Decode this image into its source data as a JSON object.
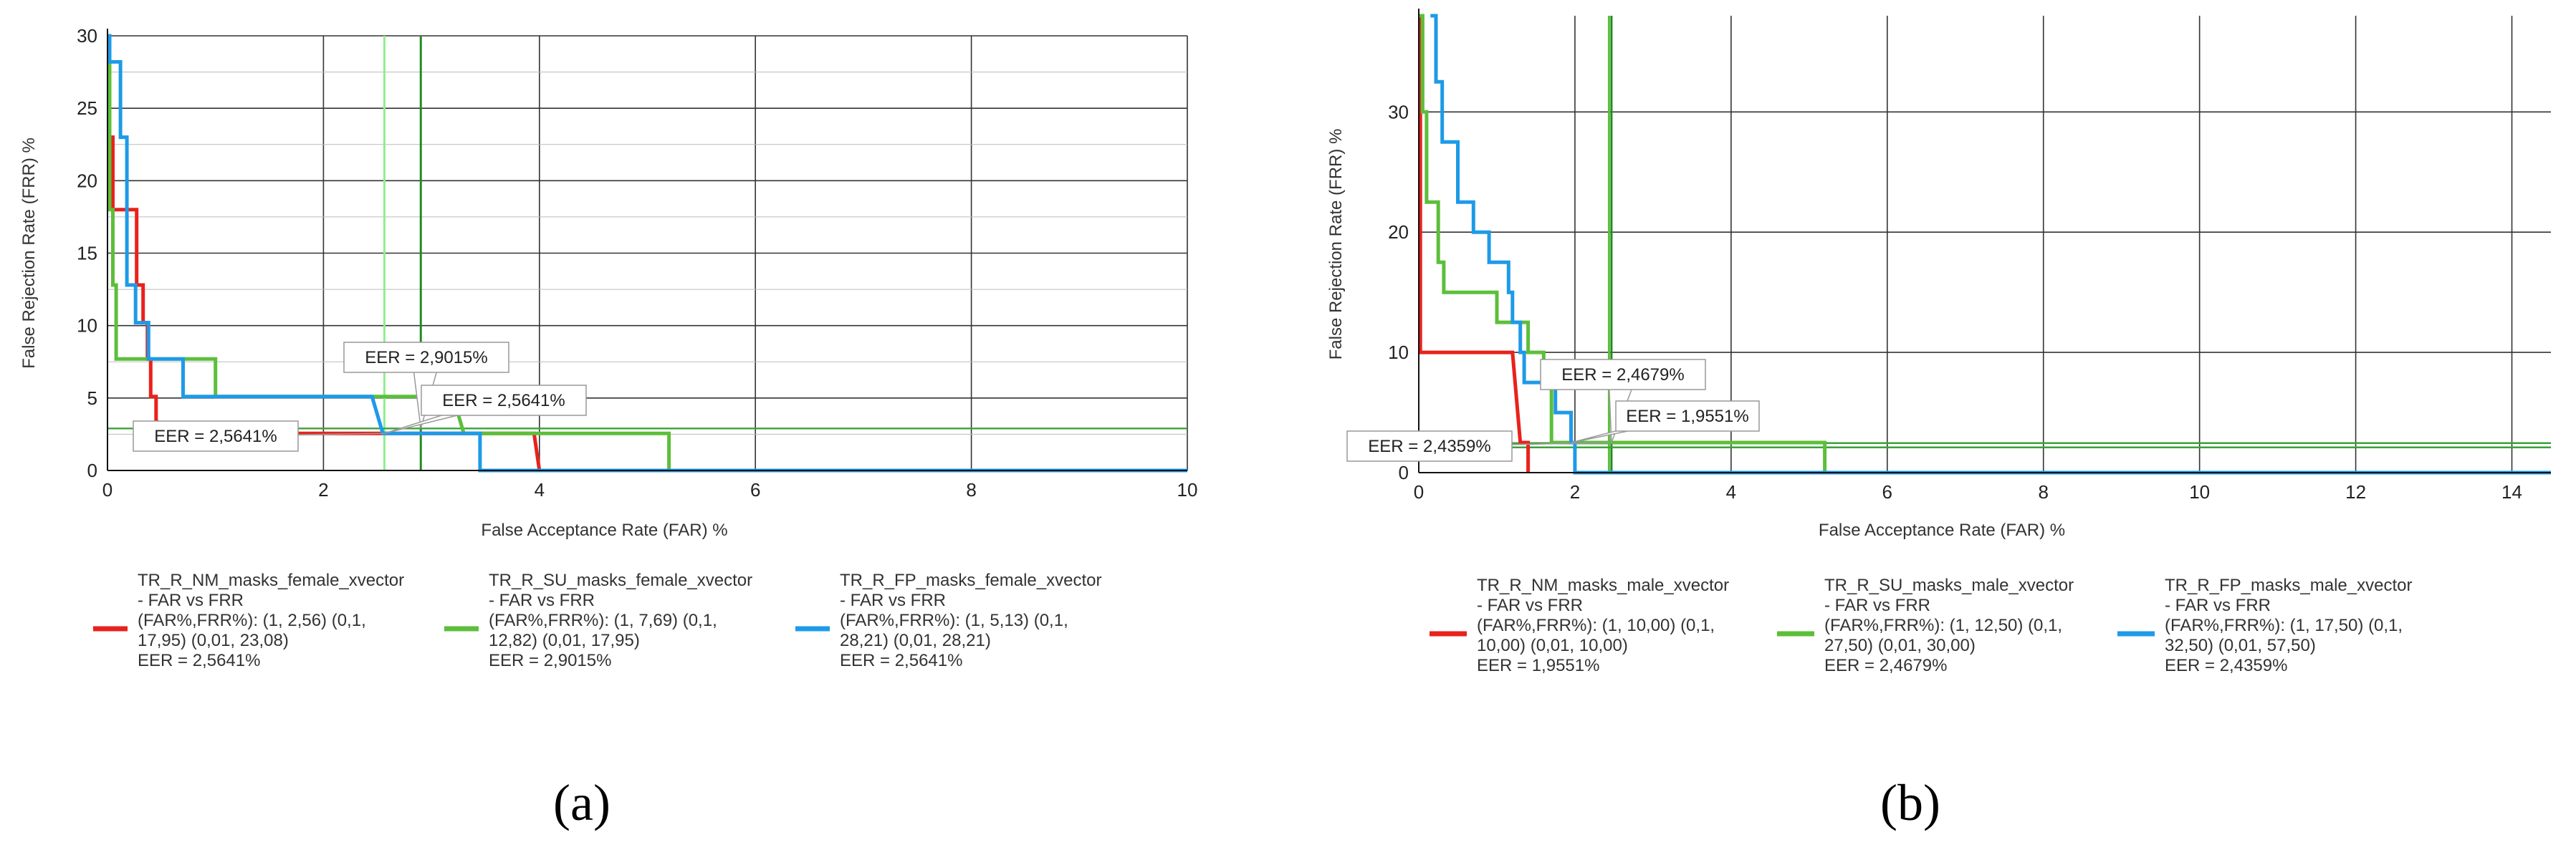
{
  "panel_labels": [
    "(a)",
    "(b)"
  ],
  "chart_data": [
    {
      "type": "line",
      "panel": "(a)",
      "xlabel": "False Acceptance Rate (FAR) %",
      "ylabel": "False Rejection Rate (FRR) %",
      "xlim": [
        0,
        10
      ],
      "ylim": [
        0,
        30
      ],
      "xticks": [
        0,
        2,
        4,
        6,
        8,
        10
      ],
      "yticks": [
        0,
        5,
        10,
        15,
        20,
        25,
        30
      ],
      "grid": true,
      "eer_lines": [
        {
          "x": 2.5641,
          "color": "#90ee90"
        },
        {
          "x": 2.9015,
          "color": "#228b22"
        }
      ],
      "threshold_y": 2.9,
      "series": [
        {
          "color": "#e8221c",
          "legend_lines": [
            "TR_R_NM_masks_female_xvector",
            "- FAR vs FRR",
            "(FAR%,FRR%): (1, 2,56) (0,1,",
            "17,95) (0,01, 23,08)",
            "EER = 2,5641%"
          ],
          "points": [
            [
              0,
              23
            ],
            [
              0.05,
              23
            ],
            [
              0.05,
              18
            ],
            [
              0.27,
              18
            ],
            [
              0.27,
              12.8
            ],
            [
              0.33,
              12.8
            ],
            [
              0.33,
              10.2
            ],
            [
              0.37,
              10.2
            ],
            [
              0.37,
              7.7
            ],
            [
              0.4,
              7.7
            ],
            [
              0.4,
              5.1
            ],
            [
              0.45,
              5.1
            ],
            [
              0.45,
              3.5
            ],
            [
              0.5,
              2.56
            ],
            [
              3.95,
              2.56
            ],
            [
              4.0,
              0
            ]
          ]
        },
        {
          "color": "#5cbf3a",
          "legend_lines": [
            "TR_R_SU_masks_female_xvector",
            "- FAR vs FRR",
            "(FAR%,FRR%): (1, 7,69) (0,1,",
            "12,82) (0,01, 17,95)",
            "EER = 2,9015%"
          ],
          "points": [
            [
              0,
              28
            ],
            [
              0.02,
              28
            ],
            [
              0.02,
              18
            ],
            [
              0.05,
              18
            ],
            [
              0.05,
              12.8
            ],
            [
              0.08,
              12.8
            ],
            [
              0.08,
              7.7
            ],
            [
              1.0,
              7.7
            ],
            [
              1.0,
              5.1
            ],
            [
              3.2,
              5.1
            ],
            [
              3.3,
              2.56
            ],
            [
              5.2,
              2.56
            ],
            [
              5.2,
              0
            ]
          ]
        },
        {
          "color": "#1e9ae8",
          "legend_lines": [
            "TR_R_FP_masks_female_xvector",
            "- FAR vs FRR",
            "(FAR%,FRR%): (1, 5,13) (0,1,",
            "28,21) (0,01, 28,21)",
            "EER = 2,5641%"
          ],
          "points": [
            [
              0,
              30
            ],
            [
              0.02,
              30
            ],
            [
              0.02,
              28.2
            ],
            [
              0.12,
              28.2
            ],
            [
              0.12,
              23
            ],
            [
              0.18,
              23
            ],
            [
              0.18,
              12.8
            ],
            [
              0.26,
              12.8
            ],
            [
              0.26,
              10.2
            ],
            [
              0.38,
              10.2
            ],
            [
              0.38,
              7.7
            ],
            [
              0.7,
              7.7
            ],
            [
              0.7,
              5.1
            ],
            [
              2.45,
              5.1
            ],
            [
              2.55,
              2.56
            ],
            [
              3.45,
              2.56
            ],
            [
              3.45,
              0
            ],
            [
              10,
              0
            ]
          ]
        }
      ],
      "eer_labels": [
        {
          "text": "EER = 2,9015%",
          "x": 2.9015,
          "y": 2.9
        },
        {
          "text": "EER = 2,5641%",
          "x": 2.5641,
          "y": 2.56
        },
        {
          "text": "EER = 2,5641%",
          "x": 2.5641,
          "y": 2.56
        }
      ]
    },
    {
      "type": "line",
      "panel": "(b)",
      "xlabel": "False Acceptance Rate (FAR) %",
      "ylabel": "False Rejection Rate (FRR) %",
      "xlim": [
        0,
        14.5
      ],
      "ylim": [
        0,
        38
      ],
      "xticks": [
        0,
        2,
        4,
        6,
        8,
        10,
        12,
        14
      ],
      "yticks": [
        0,
        10,
        20,
        30
      ],
      "grid": true,
      "eer_lines": [
        {
          "x": 2.4359,
          "color": "#5cbf3a"
        },
        {
          "x": 2.4679,
          "color": "#228b22"
        }
      ],
      "threshold_y": 2.1,
      "series": [
        {
          "color": "#e8221c",
          "legend_lines": [
            "TR_R_NM_masks_male_xvector",
            "- FAR vs FRR",
            "(FAR%,FRR%): (1, 10,00) (0,1,",
            "10,00) (0,01, 10,00)",
            "EER = 1,9551%"
          ],
          "points": [
            [
              0,
              38
            ],
            [
              0.02,
              38
            ],
            [
              0.02,
              10
            ],
            [
              1.2,
              10
            ],
            [
              1.3,
              2.5
            ],
            [
              1.4,
              2.5
            ],
            [
              1.4,
              0
            ]
          ]
        },
        {
          "color": "#5cbf3a",
          "legend_lines": [
            "TR_R_SU_masks_male_xvector",
            "- FAR vs FRR",
            "(FAR%,FRR%): (1, 12,50) (0,1,",
            "27,50) (0,01, 30,00)",
            "EER = 2,4679%"
          ],
          "points": [
            [
              0,
              38
            ],
            [
              0.05,
              38
            ],
            [
              0.05,
              30
            ],
            [
              0.1,
              30
            ],
            [
              0.1,
              22.5
            ],
            [
              0.25,
              22.5
            ],
            [
              0.25,
              17.5
            ],
            [
              0.32,
              17.5
            ],
            [
              0.32,
              15
            ],
            [
              1.0,
              15
            ],
            [
              1.0,
              12.5
            ],
            [
              1.4,
              12.5
            ],
            [
              1.4,
              10
            ],
            [
              1.6,
              10
            ],
            [
              1.6,
              7.5
            ],
            [
              1.7,
              7.5
            ],
            [
              1.7,
              2.5
            ],
            [
              5.2,
              2.5
            ],
            [
              5.2,
              0
            ]
          ]
        },
        {
          "color": "#1e9ae8",
          "legend_lines": [
            "TR_R_FP_masks_male_xvector",
            "- FAR vs FRR",
            "(FAR%,FRR%): (1, 17,50) (0,1,",
            "32,50) (0,01, 57,50)",
            "EER = 2,4359%"
          ],
          "points": [
            [
              0.15,
              38
            ],
            [
              0.22,
              38
            ],
            [
              0.22,
              32.5
            ],
            [
              0.3,
              32.5
            ],
            [
              0.3,
              27.5
            ],
            [
              0.5,
              27.5
            ],
            [
              0.5,
              22.5
            ],
            [
              0.7,
              22.5
            ],
            [
              0.7,
              20
            ],
            [
              0.9,
              20
            ],
            [
              0.9,
              17.5
            ],
            [
              1.15,
              17.5
            ],
            [
              1.15,
              15
            ],
            [
              1.2,
              15
            ],
            [
              1.2,
              12.5
            ],
            [
              1.3,
              12.5
            ],
            [
              1.3,
              10
            ],
            [
              1.35,
              10
            ],
            [
              1.35,
              7.5
            ],
            [
              1.75,
              7.5
            ],
            [
              1.75,
              5
            ],
            [
              1.95,
              5
            ],
            [
              1.95,
              2.5
            ],
            [
              2.0,
              2.5
            ],
            [
              2.0,
              0
            ],
            [
              14.5,
              0
            ]
          ]
        }
      ],
      "eer_labels": [
        {
          "text": "EER = 2,4679%",
          "x": 2.4679,
          "y": 2.5
        },
        {
          "text": "EER = 1,9551%",
          "x": 1.9551,
          "y": 2.5
        },
        {
          "text": "EER = 2,4359%",
          "x": 2.4359,
          "y": 2.5
        }
      ]
    }
  ]
}
